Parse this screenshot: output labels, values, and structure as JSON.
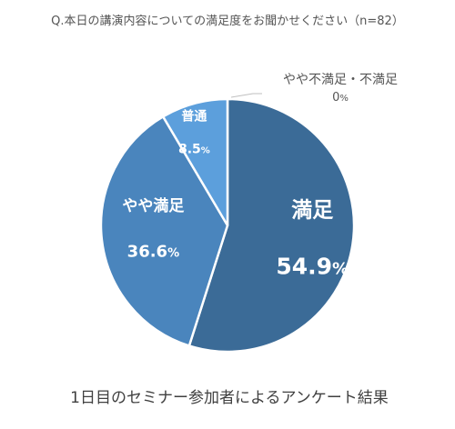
{
  "chart_data": {
    "type": "pie",
    "title": "Q.本日の講演内容についての満足度をお聞かせください（n=82）",
    "caption": "1日目のセミナー参加者によるアンケート結果",
    "unit": "%",
    "slices": [
      {
        "label": "満足",
        "value": 54.9,
        "value_text": "54.9",
        "color": "#3b6b97"
      },
      {
        "label": "やや満足",
        "value": 36.6,
        "value_text": "36.6",
        "color": "#4a85bd"
      },
      {
        "label": "普通",
        "value": 8.5,
        "value_text": "8.5",
        "color": "#5c9fdc"
      },
      {
        "label": "やや不満足・不満足",
        "value": 0,
        "value_text": "0",
        "color": "#a6a6a6"
      }
    ],
    "start": "12 o'clock",
    "direction": "clockwise",
    "legend": "none"
  }
}
